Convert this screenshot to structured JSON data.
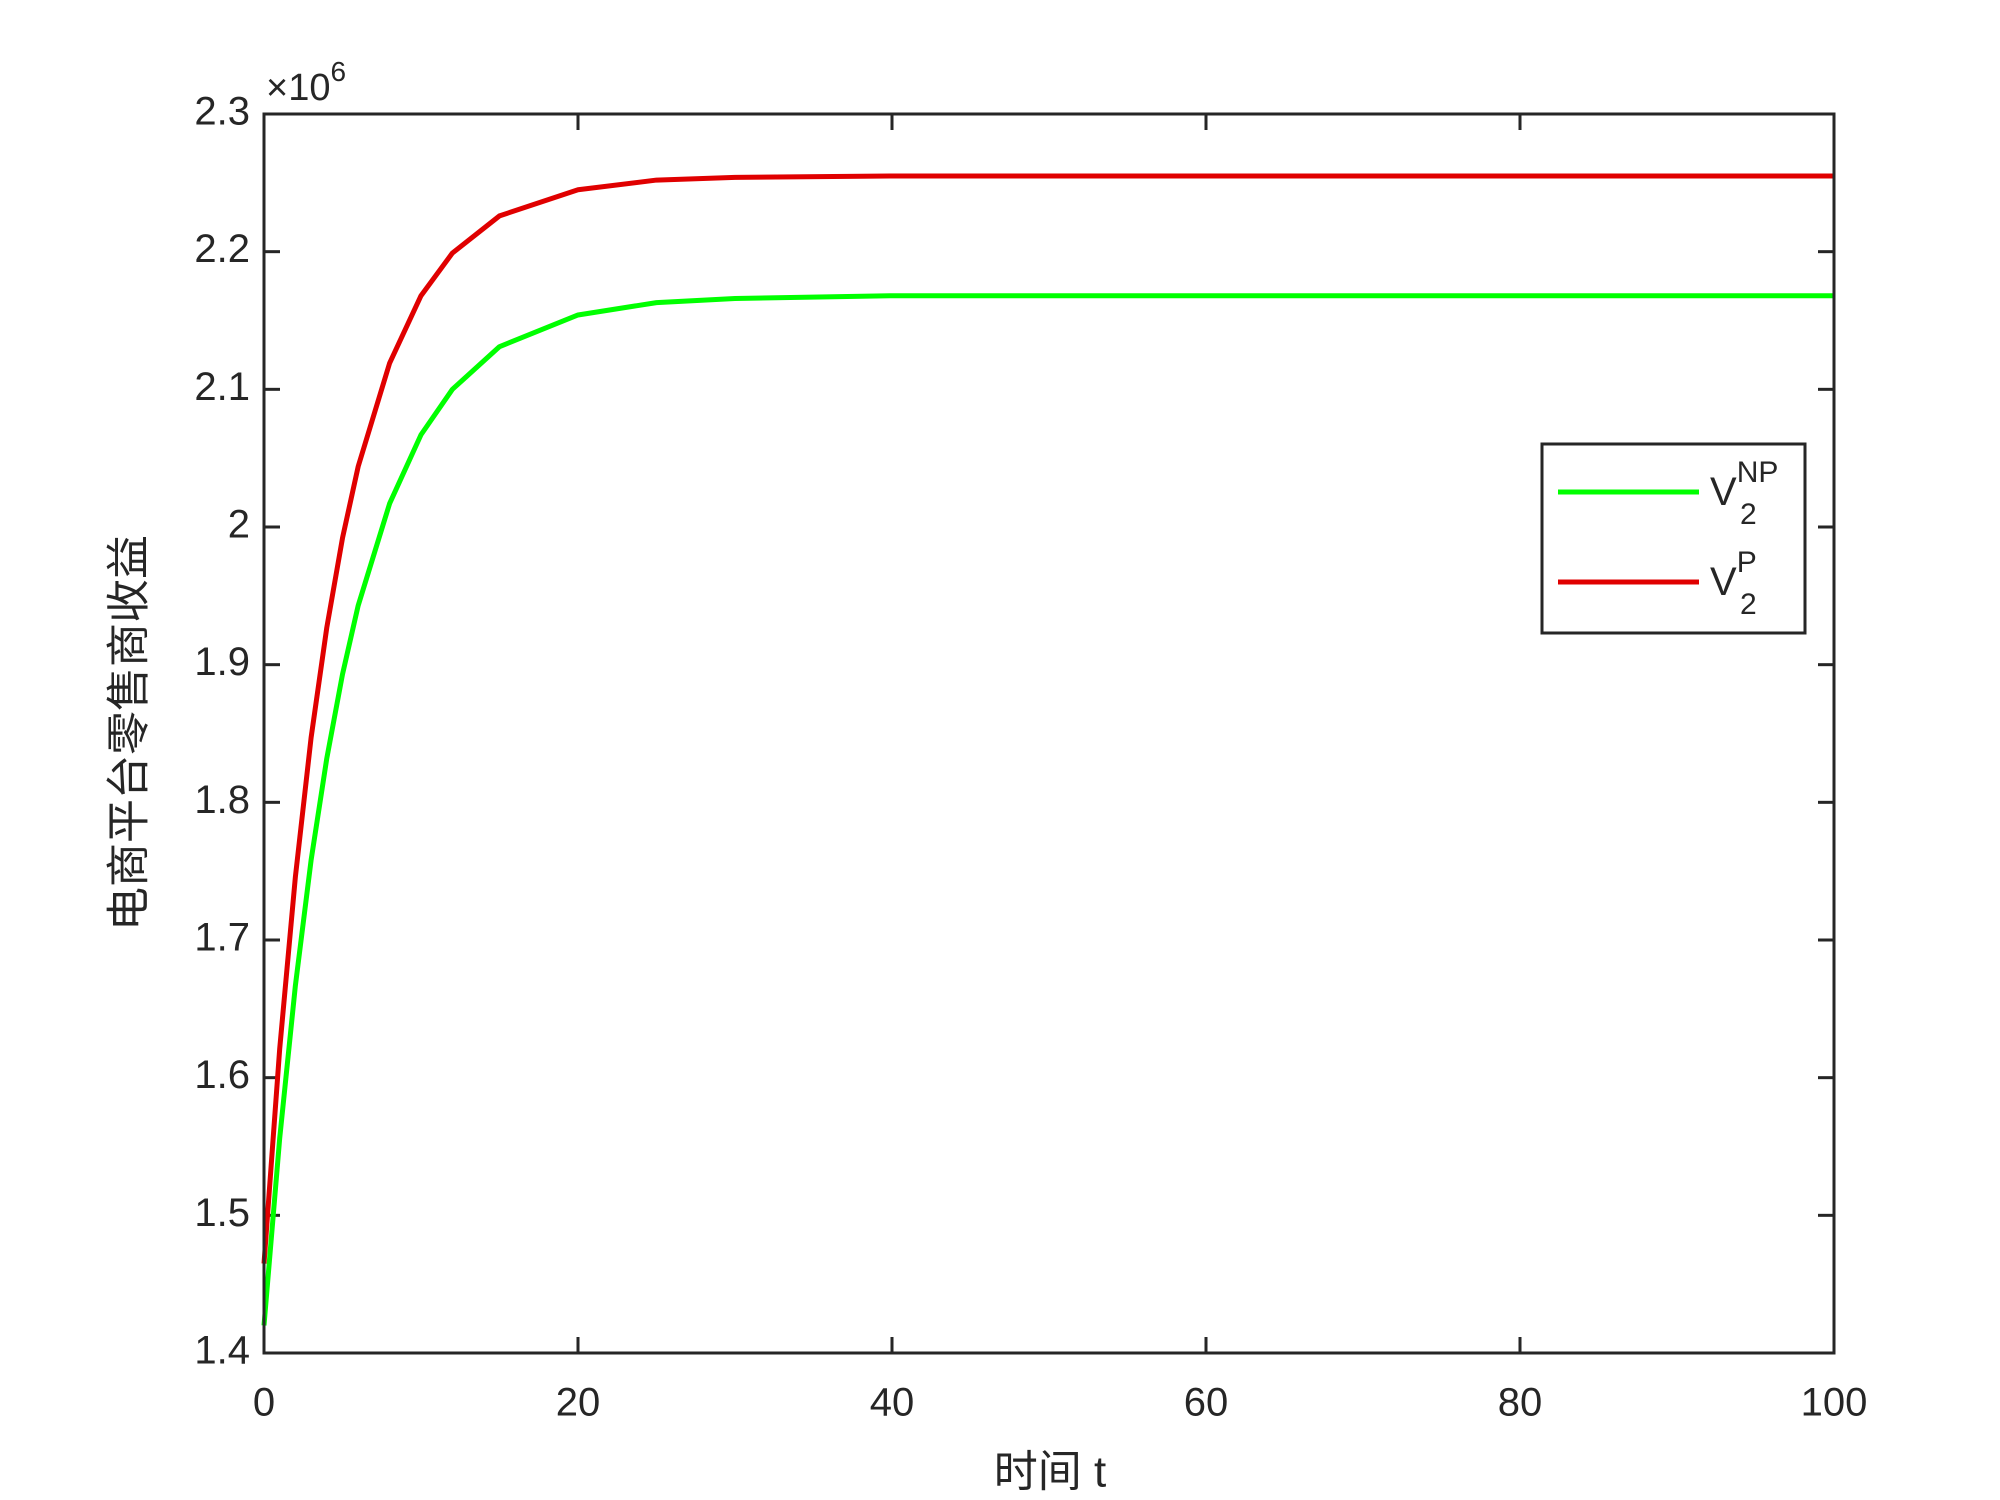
{
  "chart_data": {
    "type": "line",
    "xlabel": "时间 t",
    "ylabel": "电商平台零售商收益",
    "y_multiplier": {
      "base": "×10",
      "power": "6"
    },
    "x": [
      0,
      1,
      2,
      3,
      4,
      5,
      6,
      8,
      10,
      12,
      15,
      20,
      25,
      30,
      40,
      50,
      60,
      70,
      80,
      90,
      100
    ],
    "series": [
      {
        "name": {
          "base": "V",
          "sub": "2",
          "sup": "NP"
        },
        "color": "#00ff00",
        "values": [
          1.42,
          1.556,
          1.667,
          1.758,
          1.832,
          1.893,
          1.943,
          2.017,
          2.067,
          2.1,
          2.131,
          2.154,
          2.163,
          2.166,
          2.168,
          2.168,
          2.168,
          2.168,
          2.168,
          2.168,
          2.168
        ]
      },
      {
        "name": {
          "base": "V",
          "sub": "2",
          "sup": "P"
        },
        "color": "#e00000",
        "values": [
          1.465,
          1.621,
          1.746,
          1.847,
          1.927,
          1.992,
          2.044,
          2.119,
          2.168,
          2.199,
          2.226,
          2.245,
          2.252,
          2.254,
          2.255,
          2.255,
          2.255,
          2.255,
          2.255,
          2.255,
          2.255
        ]
      }
    ],
    "xlim": [
      0,
      100
    ],
    "xticks": [
      0,
      20,
      40,
      60,
      80,
      100
    ],
    "ylim": [
      1.4,
      2.3
    ],
    "yticks": [
      1.4,
      1.5,
      1.6,
      1.7,
      1.8,
      1.9,
      2,
      2.1,
      2.2,
      2.3
    ],
    "grid": false,
    "legend": "right"
  }
}
